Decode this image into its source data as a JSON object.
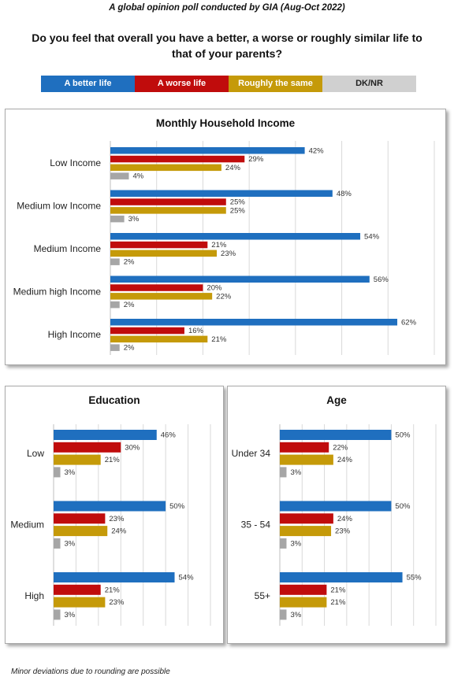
{
  "header": {
    "subtitle": "A global opinion poll conducted by GIA (Aug-Oct 2022)",
    "question": "Do you feel that overall you have a better, a worse or roughly similar life to that of your parents?"
  },
  "legend": [
    {
      "label": "A better life",
      "color": "#1f6fbf"
    },
    {
      "label": "A worse life",
      "color": "#c00c0c"
    },
    {
      "label": "Roughly the same",
      "color": "#c59a09"
    },
    {
      "label": "DK/NR",
      "color": "#d0d0d0"
    }
  ],
  "footnote": "Minor deviations due to rounding are possible",
  "chart_data": [
    {
      "type": "bar",
      "orientation": "horizontal",
      "title": "Monthly Household Income",
      "categories": [
        "Low Income",
        "Medium low Income",
        "Medium Income",
        "Medium high Income",
        "High Income"
      ],
      "series": [
        {
          "name": "A better life",
          "color": "#1f6fbf",
          "values": [
            42,
            48,
            54,
            56,
            62
          ]
        },
        {
          "name": "A worse life",
          "color": "#c00c0c",
          "values": [
            29,
            25,
            21,
            20,
            16
          ]
        },
        {
          "name": "Roughly the same",
          "color": "#c59a09",
          "values": [
            24,
            25,
            23,
            22,
            21
          ]
        },
        {
          "name": "DK/NR",
          "color": "#a6a6a6",
          "values": [
            4,
            3,
            2,
            2,
            2
          ]
        }
      ],
      "value_suffix": "%",
      "xlim": [
        0,
        70
      ],
      "grid": true,
      "legend": "top"
    },
    {
      "type": "bar",
      "orientation": "horizontal",
      "title": "Education",
      "categories": [
        "Low",
        "Medium",
        "High"
      ],
      "series": [
        {
          "name": "A better life",
          "color": "#1f6fbf",
          "values": [
            46,
            50,
            54
          ]
        },
        {
          "name": "A worse life",
          "color": "#c00c0c",
          "values": [
            30,
            23,
            21
          ]
        },
        {
          "name": "Roughly the same",
          "color": "#c59a09",
          "values": [
            21,
            24,
            23
          ]
        },
        {
          "name": "DK/NR",
          "color": "#a6a6a6",
          "values": [
            3,
            3,
            3
          ]
        }
      ],
      "value_suffix": "%",
      "xlim": [
        0,
        70
      ],
      "grid": true,
      "legend": "top"
    },
    {
      "type": "bar",
      "orientation": "horizontal",
      "title": "Age",
      "categories": [
        "Under 34",
        "35 - 54",
        "55+"
      ],
      "series": [
        {
          "name": "A better life",
          "color": "#1f6fbf",
          "values": [
            50,
            50,
            55
          ]
        },
        {
          "name": "A worse life",
          "color": "#c00c0c",
          "values": [
            22,
            24,
            21
          ]
        },
        {
          "name": "Roughly the same",
          "color": "#c59a09",
          "values": [
            24,
            23,
            21
          ]
        },
        {
          "name": "DK/NR",
          "color": "#a6a6a6",
          "values": [
            3,
            3,
            3
          ]
        }
      ],
      "value_suffix": "%",
      "xlim": [
        0,
        70
      ],
      "grid": true,
      "legend": "top"
    }
  ]
}
